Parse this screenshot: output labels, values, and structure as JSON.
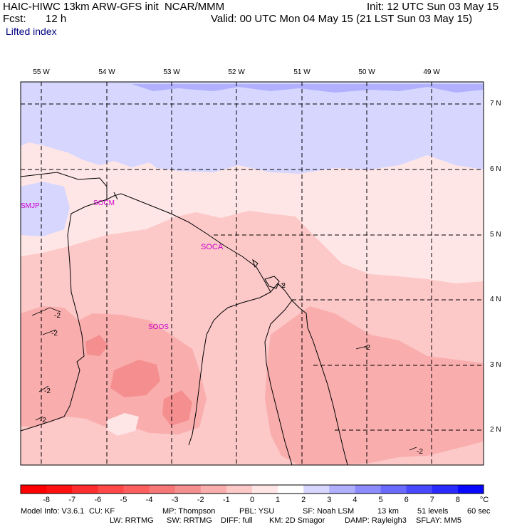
{
  "header": {
    "title": "HAIC-HIWC 13km ARW-GFS init  NCAR/MMM",
    "init": "Init: 12 UTC Sun 03 May 15",
    "fcst_label": "Fcst:",
    "fcst_value": "12 h",
    "valid": "Valid: 00 UTC Mon 04 May 15 (21 LST Sun 03 May 15)",
    "field": "Lifted index"
  },
  "map": {
    "lon_labels": [
      "55 W",
      "54 W",
      "53 W",
      "52 W",
      "51 W",
      "50 W",
      "49 W"
    ],
    "lat_labels": [
      "7 N",
      "6 N",
      "5 N",
      "4 N",
      "3 N",
      "2 N"
    ],
    "stations": [
      "SMJP",
      "SOCM",
      "SOCA",
      "SOOS"
    ],
    "contour_labels": [
      "-2",
      "-2",
      "-2",
      "-2",
      "-2",
      "-2",
      "-2"
    ]
  },
  "colorbar": {
    "labels": [
      "-8",
      "-7",
      "-6",
      "-5",
      "-4",
      "-3",
      "-2",
      "-1",
      "0",
      "1",
      "2",
      "3",
      "4",
      "5",
      "6",
      "7",
      "8"
    ],
    "unit": "°C",
    "colors": [
      "#ff1010",
      "#ff2e2e",
      "#ff4848",
      "#ff5e5e",
      "#f77676",
      "#f58f8f",
      "#f9adad",
      "#fcc8c8",
      "#ffe6e6",
      "#ffffff",
      "#d6d6ff",
      "#b0b0ff",
      "#8c8cff",
      "#6a6aff",
      "#4848ff",
      "#2a2aff",
      "#0808ff"
    ]
  },
  "footer": {
    "line1": [
      "Model Info: V3.6.1",
      "CU: KF",
      "MP: Thompson",
      "PBL: YSU",
      "SF: Noah LSM",
      "13 km",
      "51 levels",
      "60 sec"
    ],
    "line2": [
      "LW: RRTMG",
      "SW: RRTMG",
      "DIFF: full",
      "KM: 2D Smagor",
      "DAMP: Rayleigh3",
      "SFLAY: MM5"
    ]
  }
}
